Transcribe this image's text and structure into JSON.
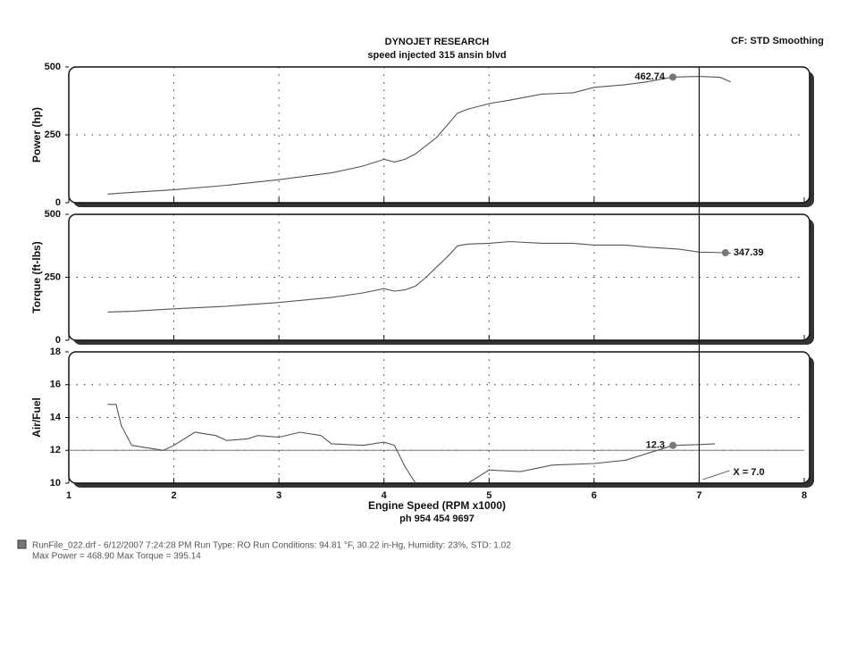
{
  "header": {
    "title": "DYNOJET RESEARCH",
    "subtitle": "speed injected 315 ansin blvd",
    "settings": "CF: STD  Smoothing"
  },
  "chart_data": [
    {
      "type": "line",
      "ylabel": "Power (hp)",
      "xlim": [
        1,
        8
      ],
      "ylim": [
        0,
        500
      ],
      "yticks": [
        0,
        250,
        500
      ],
      "grid": true,
      "series": [
        {
          "color": "#555555",
          "x": [
            1.37,
            1.6,
            2.0,
            2.5,
            3.0,
            3.5,
            3.8,
            4.0,
            4.1,
            4.2,
            4.3,
            4.4,
            4.5,
            4.6,
            4.7,
            4.8,
            4.9,
            5.0,
            5.2,
            5.5,
            5.8,
            6.0,
            6.3,
            6.5,
            6.75,
            7.0,
            7.2,
            7.3
          ],
          "values": [
            32,
            38,
            48,
            64,
            85,
            110,
            135,
            160,
            150,
            160,
            180,
            210,
            240,
            285,
            330,
            345,
            355,
            365,
            378,
            400,
            405,
            425,
            435,
            445,
            462.74,
            465,
            462,
            445
          ]
        }
      ],
      "marker": {
        "x": 6.75,
        "y": 462.74
      }
    },
    {
      "type": "line",
      "ylabel": "Torque (ft-lbs)",
      "xlim": [
        1,
        8
      ],
      "ylim": [
        0,
        500
      ],
      "yticks": [
        0,
        250,
        500
      ],
      "grid": true,
      "series": [
        {
          "color": "#555555",
          "x": [
            1.37,
            1.6,
            2.0,
            2.5,
            3.0,
            3.5,
            3.8,
            4.0,
            4.1,
            4.2,
            4.3,
            4.4,
            4.5,
            4.6,
            4.7,
            4.8,
            5.0,
            5.2,
            5.5,
            5.8,
            6.0,
            6.3,
            6.5,
            6.8,
            7.0,
            7.25,
            7.3
          ],
          "values": [
            112,
            115,
            125,
            135,
            150,
            170,
            188,
            205,
            195,
            200,
            215,
            250,
            290,
            330,
            375,
            382,
            385,
            392,
            385,
            385,
            378,
            378,
            370,
            362,
            350,
            347.39,
            345
          ]
        }
      ],
      "marker": {
        "x": 7.25,
        "y": 347.39
      }
    },
    {
      "type": "line",
      "ylabel": "Air/Fuel",
      "xlabel": "Engine Speed (RPM x1000)",
      "xlim": [
        1,
        8
      ],
      "ylim": [
        10,
        18
      ],
      "yticks": [
        10,
        12,
        14,
        16,
        18
      ],
      "xticks": [
        1,
        2,
        3,
        4,
        5,
        6,
        7,
        8
      ],
      "grid": true,
      "reference_line": 12,
      "series": [
        {
          "color": "#555555",
          "x": [
            1.37,
            1.45,
            1.5,
            1.6,
            1.8,
            1.9,
            2.0,
            2.2,
            2.4,
            2.5,
            2.7,
            2.8,
            3.0,
            3.2,
            3.4,
            3.5,
            3.8,
            4.0,
            4.1,
            4.2,
            4.3,
            4.5,
            4.8,
            5.0,
            5.3,
            5.6,
            6.0,
            6.3,
            6.6,
            6.75,
            7.0,
            7.15
          ],
          "values": [
            14.8,
            14.8,
            13.5,
            12.3,
            12.1,
            12.0,
            12.3,
            13.1,
            12.9,
            12.6,
            12.7,
            12.9,
            12.8,
            13.1,
            12.9,
            12.4,
            12.3,
            12.5,
            12.3,
            11.0,
            10.0,
            null,
            10.0,
            10.8,
            10.7,
            11.1,
            11.2,
            11.4,
            12.0,
            12.3,
            12.35,
            12.4
          ]
        }
      ],
      "marker": {
        "x": 6.75,
        "y": 12.3
      },
      "cursor": {
        "value": 7,
        "label": "X = 7.0"
      }
    }
  ],
  "footer": {
    "note": "ph 954 454 9697",
    "run": "RunFile_022.drf - 6/12/2007 7:24:28 PM  Run Type: RO  Run Conditions: 94.81 °F, 30.22 in-Hg,  Humidity:  23%, STD: 1.02",
    "max": "Max Power = 468.90  Max Torque = 395.14"
  }
}
